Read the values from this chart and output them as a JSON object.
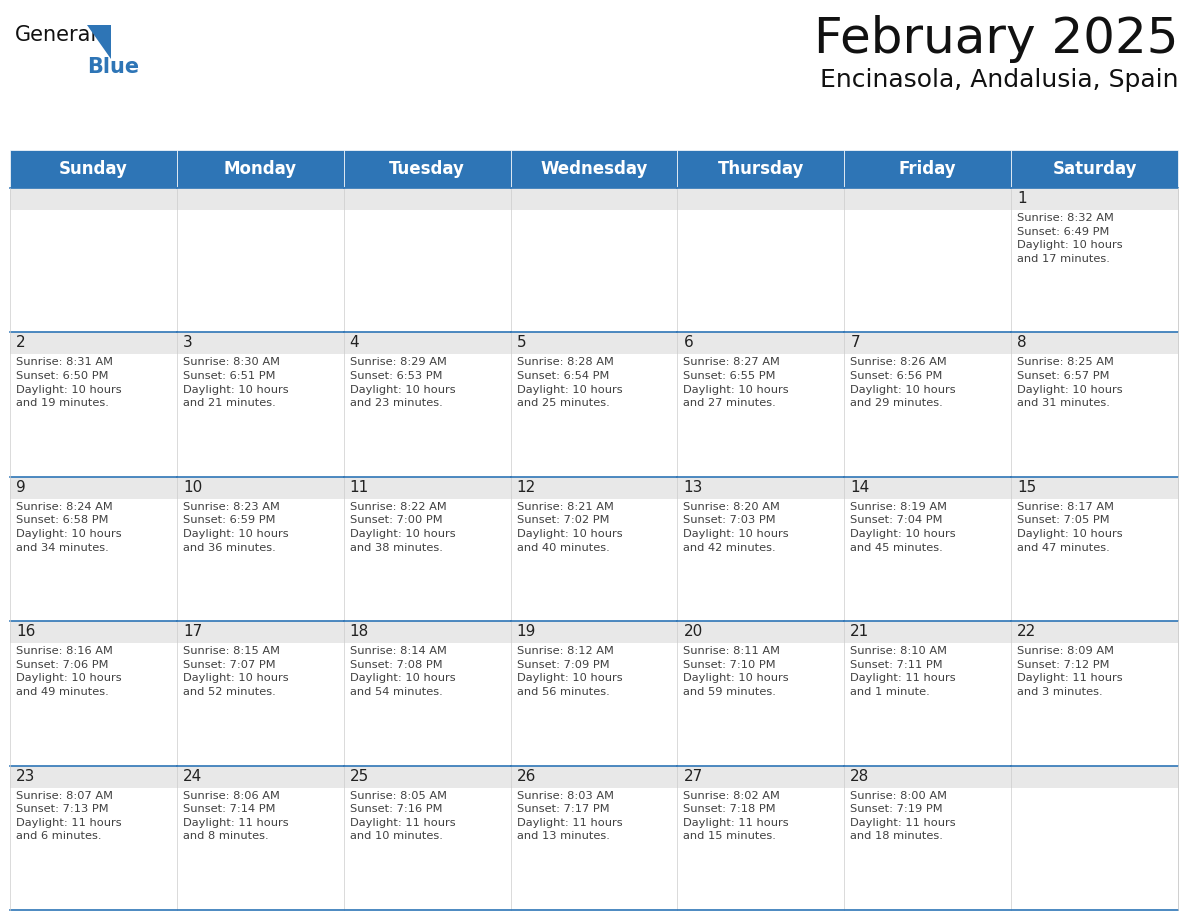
{
  "title": "February 2025",
  "subtitle": "Encinasola, Andalusia, Spain",
  "header_color": "#2E75B6",
  "header_text_color": "#FFFFFF",
  "cell_border_color": "#2E75B6",
  "cell_top_strip_color": "#E8E8E8",
  "day_number_color": "#222222",
  "info_text_color": "#404040",
  "background_color": "#FFFFFF",
  "days_of_week": [
    "Sunday",
    "Monday",
    "Tuesday",
    "Wednesday",
    "Thursday",
    "Friday",
    "Saturday"
  ],
  "weeks": [
    [
      {
        "day": null,
        "info": null
      },
      {
        "day": null,
        "info": null
      },
      {
        "day": null,
        "info": null
      },
      {
        "day": null,
        "info": null
      },
      {
        "day": null,
        "info": null
      },
      {
        "day": null,
        "info": null
      },
      {
        "day": 1,
        "info": "Sunrise: 8:32 AM\nSunset: 6:49 PM\nDaylight: 10 hours\nand 17 minutes."
      }
    ],
    [
      {
        "day": 2,
        "info": "Sunrise: 8:31 AM\nSunset: 6:50 PM\nDaylight: 10 hours\nand 19 minutes."
      },
      {
        "day": 3,
        "info": "Sunrise: 8:30 AM\nSunset: 6:51 PM\nDaylight: 10 hours\nand 21 minutes."
      },
      {
        "day": 4,
        "info": "Sunrise: 8:29 AM\nSunset: 6:53 PM\nDaylight: 10 hours\nand 23 minutes."
      },
      {
        "day": 5,
        "info": "Sunrise: 8:28 AM\nSunset: 6:54 PM\nDaylight: 10 hours\nand 25 minutes."
      },
      {
        "day": 6,
        "info": "Sunrise: 8:27 AM\nSunset: 6:55 PM\nDaylight: 10 hours\nand 27 minutes."
      },
      {
        "day": 7,
        "info": "Sunrise: 8:26 AM\nSunset: 6:56 PM\nDaylight: 10 hours\nand 29 minutes."
      },
      {
        "day": 8,
        "info": "Sunrise: 8:25 AM\nSunset: 6:57 PM\nDaylight: 10 hours\nand 31 minutes."
      }
    ],
    [
      {
        "day": 9,
        "info": "Sunrise: 8:24 AM\nSunset: 6:58 PM\nDaylight: 10 hours\nand 34 minutes."
      },
      {
        "day": 10,
        "info": "Sunrise: 8:23 AM\nSunset: 6:59 PM\nDaylight: 10 hours\nand 36 minutes."
      },
      {
        "day": 11,
        "info": "Sunrise: 8:22 AM\nSunset: 7:00 PM\nDaylight: 10 hours\nand 38 minutes."
      },
      {
        "day": 12,
        "info": "Sunrise: 8:21 AM\nSunset: 7:02 PM\nDaylight: 10 hours\nand 40 minutes."
      },
      {
        "day": 13,
        "info": "Sunrise: 8:20 AM\nSunset: 7:03 PM\nDaylight: 10 hours\nand 42 minutes."
      },
      {
        "day": 14,
        "info": "Sunrise: 8:19 AM\nSunset: 7:04 PM\nDaylight: 10 hours\nand 45 minutes."
      },
      {
        "day": 15,
        "info": "Sunrise: 8:17 AM\nSunset: 7:05 PM\nDaylight: 10 hours\nand 47 minutes."
      }
    ],
    [
      {
        "day": 16,
        "info": "Sunrise: 8:16 AM\nSunset: 7:06 PM\nDaylight: 10 hours\nand 49 minutes."
      },
      {
        "day": 17,
        "info": "Sunrise: 8:15 AM\nSunset: 7:07 PM\nDaylight: 10 hours\nand 52 minutes."
      },
      {
        "day": 18,
        "info": "Sunrise: 8:14 AM\nSunset: 7:08 PM\nDaylight: 10 hours\nand 54 minutes."
      },
      {
        "day": 19,
        "info": "Sunrise: 8:12 AM\nSunset: 7:09 PM\nDaylight: 10 hours\nand 56 minutes."
      },
      {
        "day": 20,
        "info": "Sunrise: 8:11 AM\nSunset: 7:10 PM\nDaylight: 10 hours\nand 59 minutes."
      },
      {
        "day": 21,
        "info": "Sunrise: 8:10 AM\nSunset: 7:11 PM\nDaylight: 11 hours\nand 1 minute."
      },
      {
        "day": 22,
        "info": "Sunrise: 8:09 AM\nSunset: 7:12 PM\nDaylight: 11 hours\nand 3 minutes."
      }
    ],
    [
      {
        "day": 23,
        "info": "Sunrise: 8:07 AM\nSunset: 7:13 PM\nDaylight: 11 hours\nand 6 minutes."
      },
      {
        "day": 24,
        "info": "Sunrise: 8:06 AM\nSunset: 7:14 PM\nDaylight: 11 hours\nand 8 minutes."
      },
      {
        "day": 25,
        "info": "Sunrise: 8:05 AM\nSunset: 7:16 PM\nDaylight: 11 hours\nand 10 minutes."
      },
      {
        "day": 26,
        "info": "Sunrise: 8:03 AM\nSunset: 7:17 PM\nDaylight: 11 hours\nand 13 minutes."
      },
      {
        "day": 27,
        "info": "Sunrise: 8:02 AM\nSunset: 7:18 PM\nDaylight: 11 hours\nand 15 minutes."
      },
      {
        "day": 28,
        "info": "Sunrise: 8:00 AM\nSunset: 7:19 PM\nDaylight: 11 hours\nand 18 minutes."
      },
      {
        "day": null,
        "info": null
      }
    ]
  ],
  "logo_text_general": "General",
  "logo_text_blue": "Blue",
  "logo_triangle_color": "#2E75B6",
  "title_fontsize": 36,
  "subtitle_fontsize": 18,
  "header_fontsize": 12,
  "day_number_fontsize": 11,
  "info_fontsize": 8.2
}
